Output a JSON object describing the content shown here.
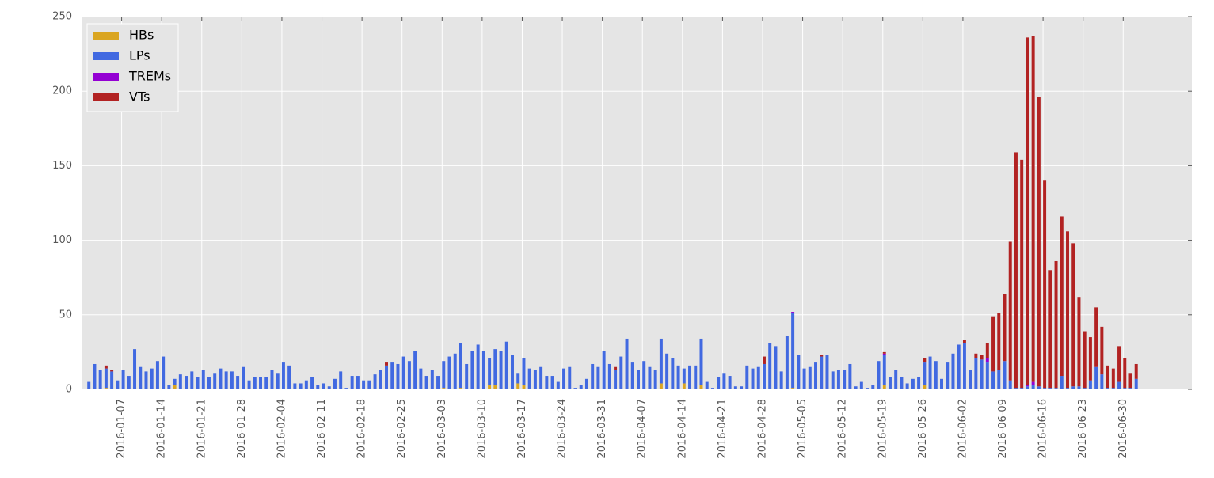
{
  "chart_data": {
    "type": "stacked_bar",
    "x": [
      "2016-01-01",
      "2016-01-02",
      "2016-01-03",
      "2016-01-04",
      "2016-01-05",
      "2016-01-06",
      "2016-01-07",
      "2016-01-08",
      "2016-01-09",
      "2016-01-10",
      "2016-01-11",
      "2016-01-12",
      "2016-01-13",
      "2016-01-14",
      "2016-01-15",
      "2016-01-16",
      "2016-01-17",
      "2016-01-18",
      "2016-01-19",
      "2016-01-20",
      "2016-01-21",
      "2016-01-22",
      "2016-01-23",
      "2016-01-24",
      "2016-01-25",
      "2016-01-26",
      "2016-01-27",
      "2016-01-28",
      "2016-01-29",
      "2016-01-30",
      "2016-01-31",
      "2016-02-01",
      "2016-02-02",
      "2016-02-03",
      "2016-02-04",
      "2016-02-05",
      "2016-02-06",
      "2016-02-07",
      "2016-02-08",
      "2016-02-09",
      "2016-02-10",
      "2016-02-11",
      "2016-02-12",
      "2016-02-13",
      "2016-02-14",
      "2016-02-15",
      "2016-02-16",
      "2016-02-17",
      "2016-02-18",
      "2016-02-19",
      "2016-02-20",
      "2016-02-21",
      "2016-02-22",
      "2016-02-23",
      "2016-02-24",
      "2016-02-25",
      "2016-02-26",
      "2016-02-27",
      "2016-02-28",
      "2016-02-29",
      "2016-03-01",
      "2016-03-02",
      "2016-03-03",
      "2016-03-04",
      "2016-03-05",
      "2016-03-06",
      "2016-03-07",
      "2016-03-08",
      "2016-03-09",
      "2016-03-10",
      "2016-03-11",
      "2016-03-12",
      "2016-03-13",
      "2016-03-14",
      "2016-03-15",
      "2016-03-16",
      "2016-03-17",
      "2016-03-18",
      "2016-03-19",
      "2016-03-20",
      "2016-03-21",
      "2016-03-22",
      "2016-03-23",
      "2016-03-24",
      "2016-03-25",
      "2016-03-26",
      "2016-03-27",
      "2016-03-28",
      "2016-03-29",
      "2016-03-30",
      "2016-03-31",
      "2016-04-01",
      "2016-04-02",
      "2016-04-03",
      "2016-04-04",
      "2016-04-05",
      "2016-04-06",
      "2016-04-07",
      "2016-04-08",
      "2016-04-09",
      "2016-04-10",
      "2016-04-11",
      "2016-04-12",
      "2016-04-13",
      "2016-04-14",
      "2016-04-15",
      "2016-04-16",
      "2016-04-17",
      "2016-04-18",
      "2016-04-19",
      "2016-04-20",
      "2016-04-21",
      "2016-04-22",
      "2016-04-23",
      "2016-04-24",
      "2016-04-25",
      "2016-04-26",
      "2016-04-27",
      "2016-04-28",
      "2016-04-29",
      "2016-04-30",
      "2016-05-01",
      "2016-05-02",
      "2016-05-03",
      "2016-05-04",
      "2016-05-05",
      "2016-05-06",
      "2016-05-07",
      "2016-05-08",
      "2016-05-09",
      "2016-05-10",
      "2016-05-11",
      "2016-05-12",
      "2016-05-13",
      "2016-05-14",
      "2016-05-15",
      "2016-05-16",
      "2016-05-17",
      "2016-05-18",
      "2016-05-19",
      "2016-05-20",
      "2016-05-21",
      "2016-05-22",
      "2016-05-23",
      "2016-05-24",
      "2016-05-25",
      "2016-05-26",
      "2016-05-27",
      "2016-05-28",
      "2016-05-29",
      "2016-05-30",
      "2016-05-31",
      "2016-06-01",
      "2016-06-02",
      "2016-06-03",
      "2016-06-04",
      "2016-06-05",
      "2016-06-06",
      "2016-06-07",
      "2016-06-08",
      "2016-06-09",
      "2016-06-10",
      "2016-06-11",
      "2016-06-12",
      "2016-06-13",
      "2016-06-14",
      "2016-06-15",
      "2016-06-16",
      "2016-06-17",
      "2016-06-18",
      "2016-06-19",
      "2016-06-20",
      "2016-06-21",
      "2016-06-22",
      "2016-06-23",
      "2016-06-24",
      "2016-06-25",
      "2016-06-26",
      "2016-06-27",
      "2016-06-28",
      "2016-06-29",
      "2016-06-30",
      "2016-07-01",
      "2016-07-02"
    ],
    "series": [
      {
        "name": "HBs",
        "color": "#daa520",
        "values": [
          0,
          0,
          0,
          1,
          0,
          0,
          0,
          0,
          0,
          0,
          0,
          0,
          0,
          0,
          0,
          3,
          0,
          0,
          0,
          0,
          0,
          0,
          0,
          0,
          0,
          0,
          0,
          0,
          0,
          0,
          0,
          0,
          0,
          0,
          0,
          0,
          0,
          0,
          0,
          0,
          0,
          0,
          0,
          0,
          0,
          0,
          0,
          0,
          0,
          0,
          0,
          0,
          0,
          0,
          0,
          0,
          0,
          0,
          0,
          0,
          0,
          0,
          1,
          0,
          0,
          1,
          0,
          0,
          0,
          0,
          3,
          3,
          0,
          0,
          0,
          4,
          3,
          0,
          0,
          0,
          0,
          0,
          0,
          0,
          0,
          0,
          0,
          0,
          0,
          0,
          0,
          0,
          0,
          0,
          0,
          0,
          0,
          0,
          0,
          0,
          4,
          0,
          0,
          0,
          4,
          0,
          0,
          3,
          0,
          0,
          0,
          0,
          0,
          0,
          0,
          0,
          0,
          0,
          0,
          0,
          0,
          0,
          0,
          1,
          0,
          0,
          0,
          0,
          0,
          0,
          0,
          0,
          0,
          0,
          0,
          0,
          0,
          0,
          0,
          3,
          0,
          0,
          0,
          0,
          0,
          0,
          3,
          0,
          0,
          0,
          0,
          0,
          0,
          0,
          0,
          0,
          0,
          0,
          0,
          0,
          0,
          0,
          0,
          0,
          0,
          0,
          0,
          0,
          0,
          0,
          0,
          0,
          0,
          0,
          0,
          0,
          0,
          0,
          0,
          0,
          0,
          0,
          0,
          0
        ]
      },
      {
        "name": "LPs",
        "color": "#4169e1",
        "values": [
          5,
          17,
          13,
          13,
          12,
          6,
          13,
          9,
          27,
          15,
          12,
          14,
          19,
          22,
          3,
          4,
          10,
          9,
          12,
          8,
          13,
          8,
          11,
          14,
          12,
          12,
          9,
          15,
          6,
          8,
          8,
          8,
          13,
          11,
          18,
          16,
          4,
          4,
          6,
          8,
          3,
          4,
          2,
          7,
          12,
          1,
          9,
          9,
          6,
          6,
          10,
          13,
          16,
          18,
          17,
          22,
          19,
          26,
          14,
          9,
          13,
          9,
          18,
          22,
          24,
          30,
          17,
          26,
          30,
          26,
          18,
          24,
          26,
          32,
          23,
          7,
          18,
          14,
          13,
          15,
          9,
          9,
          5,
          14,
          15,
          1,
          3,
          7,
          17,
          15,
          26,
          17,
          13,
          22,
          34,
          18,
          13,
          19,
          15,
          13,
          30,
          24,
          21,
          16,
          10,
          16,
          16,
          31,
          5,
          1,
          8,
          11,
          9,
          2,
          2,
          16,
          14,
          15,
          17,
          31,
          29,
          12,
          36,
          50,
          23,
          14,
          15,
          18,
          22,
          23,
          12,
          13,
          13,
          17,
          2,
          5,
          1,
          3,
          19,
          20,
          8,
          13,
          8,
          4,
          7,
          8,
          15,
          22,
          19,
          7,
          18,
          24,
          30,
          31,
          13,
          21,
          20,
          18,
          12,
          13,
          19,
          6,
          1,
          1,
          2,
          3,
          2,
          1,
          1,
          1,
          9,
          1,
          2,
          2,
          1,
          6,
          15,
          10,
          1,
          1,
          5,
          1,
          1,
          7
        ]
      },
      {
        "name": "TREMs",
        "color": "#9400d3",
        "values": [
          0,
          0,
          0,
          0,
          0,
          0,
          0,
          0,
          0,
          0,
          0,
          0,
          0,
          0,
          0,
          0,
          0,
          0,
          0,
          0,
          0,
          0,
          0,
          0,
          0,
          0,
          0,
          0,
          0,
          0,
          0,
          0,
          0,
          0,
          0,
          0,
          0,
          0,
          0,
          0,
          0,
          0,
          0,
          0,
          0,
          0,
          0,
          0,
          0,
          0,
          0,
          0,
          0,
          0,
          0,
          0,
          0,
          0,
          0,
          0,
          0,
          0,
          0,
          0,
          0,
          0,
          0,
          0,
          0,
          0,
          0,
          0,
          0,
          0,
          0,
          0,
          0,
          0,
          0,
          0,
          0,
          0,
          0,
          0,
          0,
          0,
          0,
          0,
          0,
          0,
          0,
          0,
          0,
          0,
          0,
          0,
          0,
          0,
          0,
          0,
          0,
          0,
          0,
          0,
          0,
          0,
          0,
          0,
          0,
          0,
          0,
          0,
          0,
          0,
          0,
          0,
          0,
          0,
          0,
          0,
          0,
          0,
          0,
          1,
          0,
          0,
          0,
          0,
          0,
          0,
          0,
          0,
          0,
          0,
          0,
          0,
          0,
          0,
          0,
          1,
          0,
          0,
          0,
          0,
          0,
          0,
          0,
          0,
          0,
          0,
          0,
          0,
          0,
          0,
          0,
          0,
          0,
          3,
          0,
          0,
          0,
          0,
          0,
          0,
          1,
          2,
          0,
          0,
          0,
          0,
          0,
          0,
          0,
          0,
          0,
          0,
          0,
          0,
          0,
          0,
          0,
          0,
          0,
          0
        ]
      },
      {
        "name": "VTs",
        "color": "#b22222",
        "values": [
          0,
          0,
          0,
          2,
          1,
          0,
          0,
          0,
          0,
          0,
          0,
          0,
          0,
          0,
          0,
          0,
          0,
          0,
          0,
          0,
          0,
          0,
          0,
          0,
          0,
          0,
          0,
          0,
          0,
          0,
          0,
          0,
          0,
          0,
          0,
          0,
          0,
          0,
          0,
          0,
          0,
          0,
          0,
          0,
          0,
          0,
          0,
          0,
          0,
          0,
          0,
          0,
          2,
          0,
          0,
          0,
          0,
          0,
          0,
          0,
          0,
          0,
          0,
          0,
          0,
          0,
          0,
          0,
          0,
          0,
          0,
          0,
          0,
          0,
          0,
          0,
          0,
          0,
          0,
          0,
          0,
          0,
          0,
          0,
          0,
          0,
          0,
          0,
          0,
          0,
          0,
          0,
          2,
          0,
          0,
          0,
          0,
          0,
          0,
          0,
          0,
          0,
          0,
          0,
          0,
          0,
          0,
          0,
          0,
          0,
          0,
          0,
          0,
          0,
          0,
          0,
          0,
          0,
          5,
          0,
          0,
          0,
          0,
          0,
          0,
          0,
          0,
          0,
          1,
          0,
          0,
          0,
          0,
          0,
          0,
          0,
          0,
          0,
          0,
          1,
          0,
          0,
          0,
          0,
          0,
          0,
          3,
          0,
          0,
          0,
          0,
          0,
          0,
          2,
          0,
          3,
          3,
          10,
          37,
          38,
          45,
          93,
          158,
          153,
          233,
          232,
          194,
          139,
          79,
          85,
          107,
          105,
          96,
          60,
          38,
          29,
          40,
          32,
          15,
          13,
          24,
          20,
          10,
          10
        ]
      }
    ],
    "xlim": [
      "2015-12-31",
      "2016-07-12"
    ],
    "xticks": [
      "2016-01-07",
      "2016-01-14",
      "2016-01-21",
      "2016-01-28",
      "2016-02-04",
      "2016-02-11",
      "2016-02-18",
      "2016-02-25",
      "2016-03-03",
      "2016-03-10",
      "2016-03-17",
      "2016-03-24",
      "2016-03-31",
      "2016-04-07",
      "2016-04-14",
      "2016-04-21",
      "2016-04-28",
      "2016-05-05",
      "2016-05-12",
      "2016-05-19",
      "2016-05-26",
      "2016-06-02",
      "2016-06-09",
      "2016-06-16",
      "2016-06-23",
      "2016-06-30"
    ],
    "ylim": [
      0,
      250
    ],
    "yticks": [
      0,
      50,
      100,
      150,
      200,
      250
    ],
    "grid": true,
    "legend": "upper left"
  }
}
